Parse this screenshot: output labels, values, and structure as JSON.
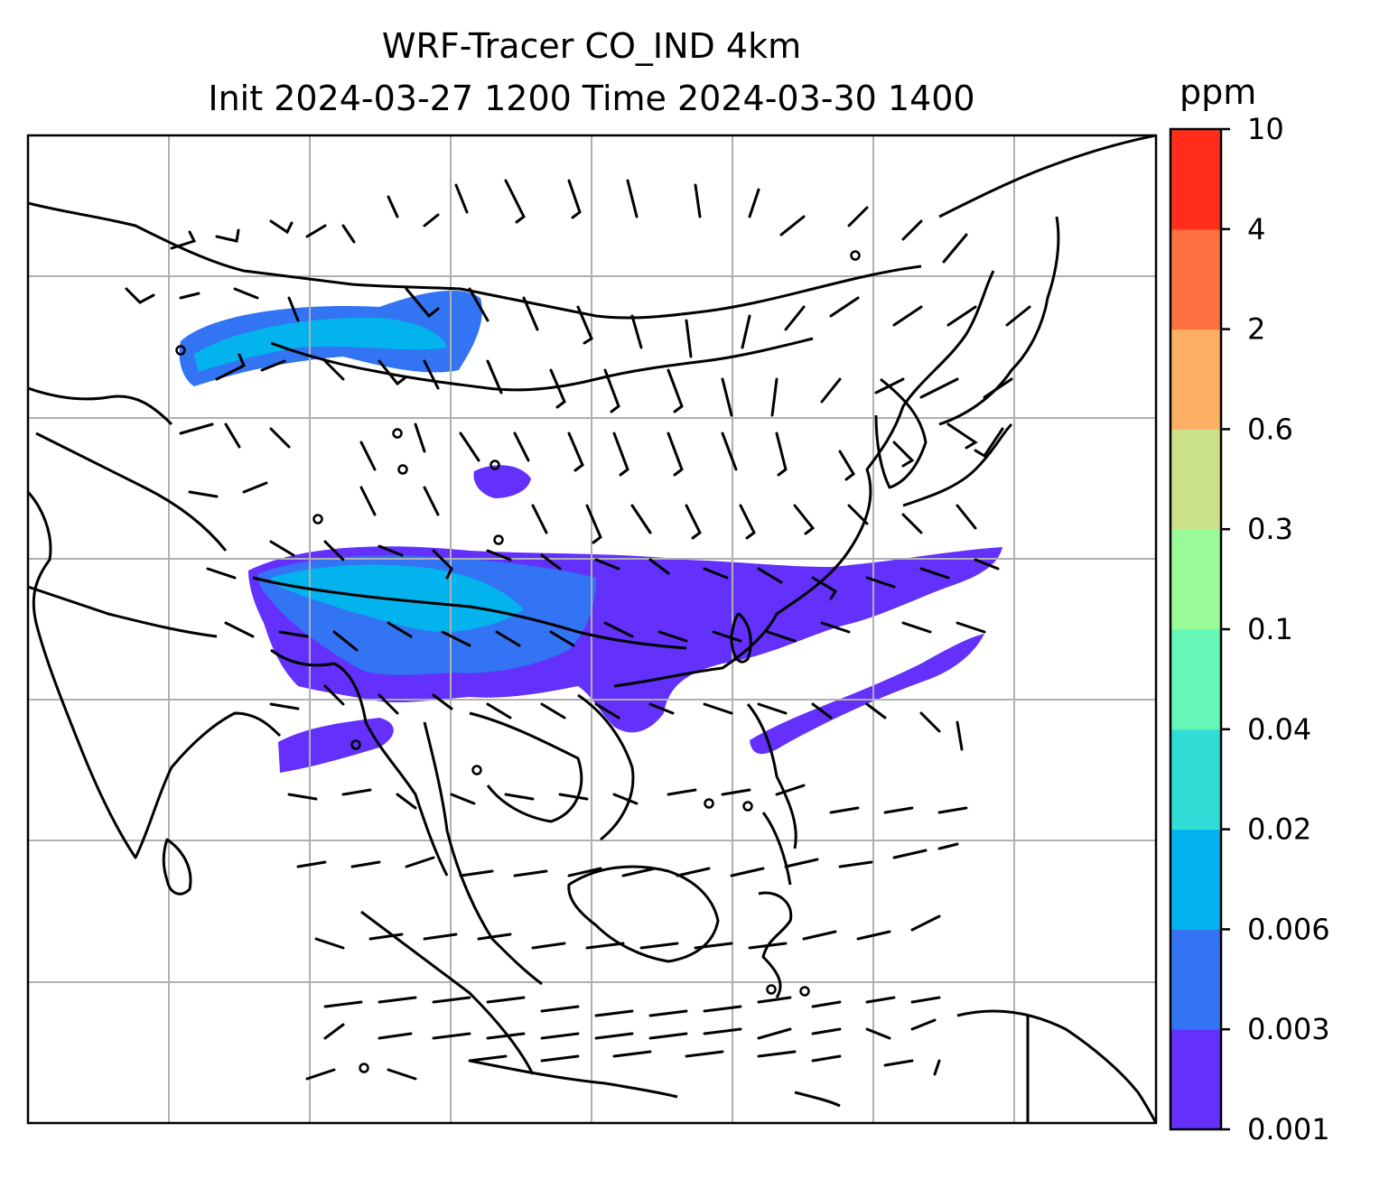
{
  "title_line1": "WRF-Tracer CO_IND 4km",
  "title_line2": "Init 2024-03-27 1200 Time 2024-03-30 1400",
  "colorbar": {
    "unit": "ppm",
    "levels": [
      "0.001",
      "0.003",
      "0.006",
      "0.02",
      "0.04",
      "0.1",
      "0.3",
      "0.6",
      "2",
      "4",
      "10"
    ],
    "colors": [
      "#6330fc",
      "#3374f4",
      "#03b3ed",
      "#30dcd6",
      "#64f7b8",
      "#98fb98",
      "#cce28a",
      "#fdb063",
      "#ff7040",
      "#ff2d1a"
    ]
  },
  "map": {
    "tracer_color": "#6330fc",
    "coastline_color": "#000000",
    "grid_color": "#b0b0b0",
    "wind_barbs": true,
    "gridlines": true
  }
}
